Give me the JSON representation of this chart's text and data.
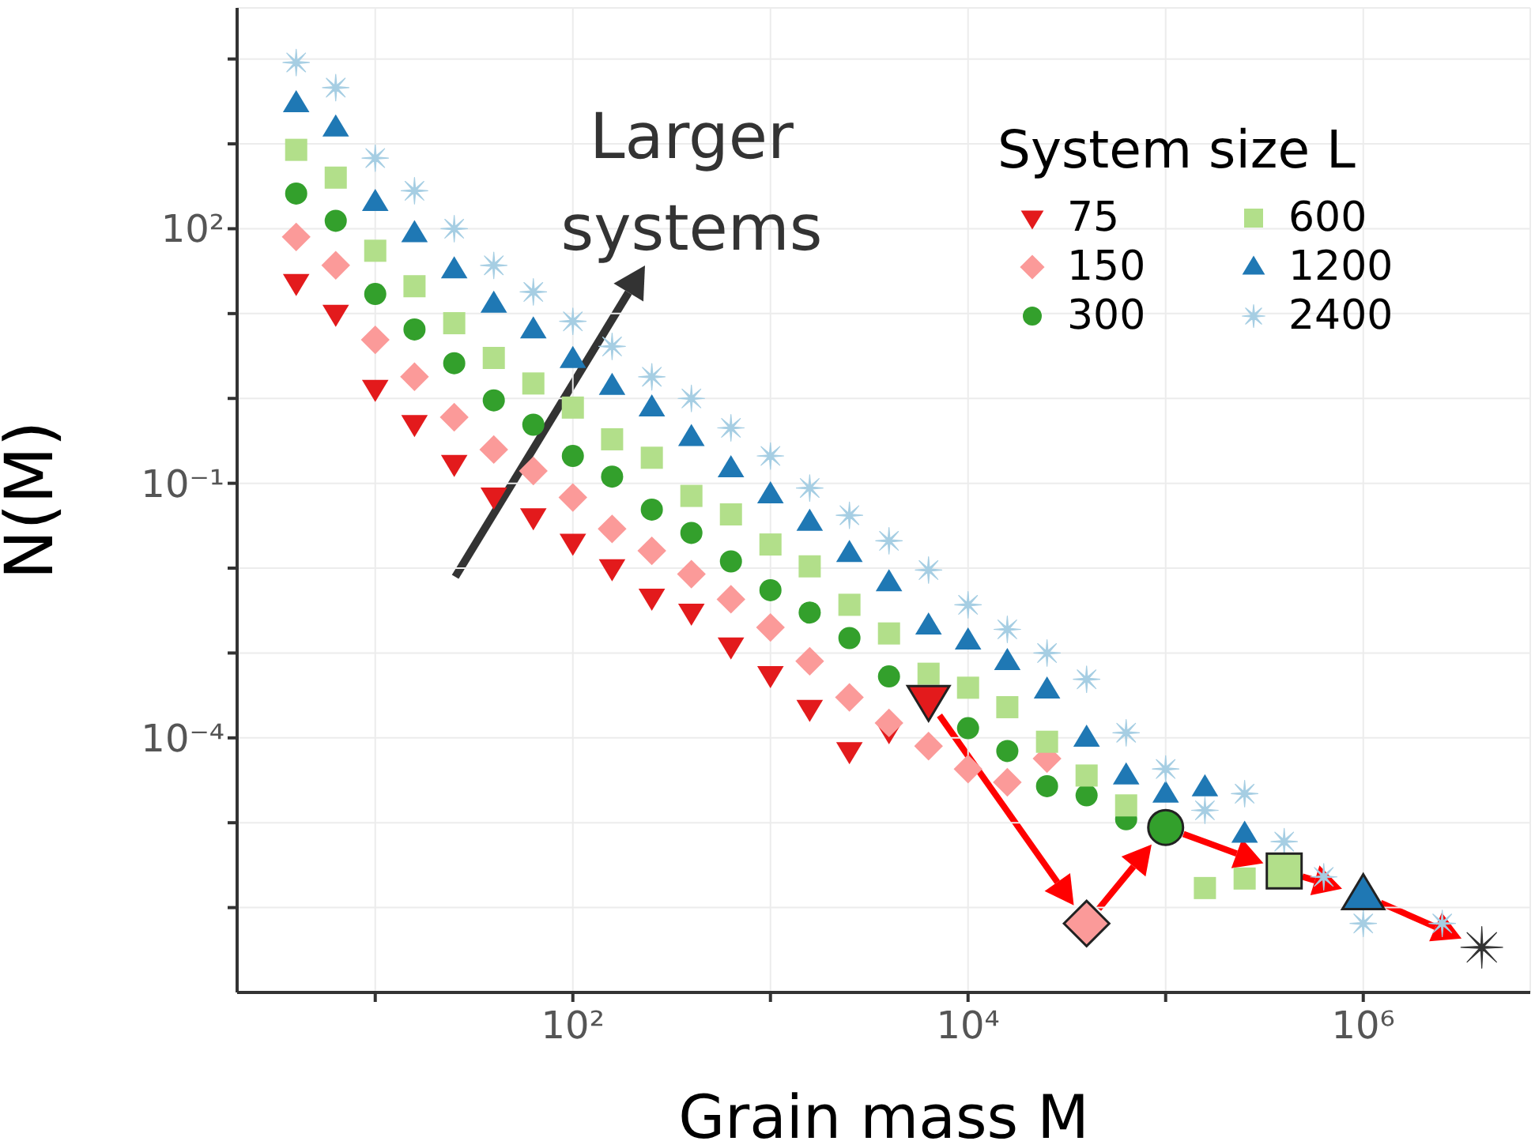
{
  "chart_data": {
    "type": "scatter",
    "xlabel": "Grain mass M",
    "ylabel": "N(M)",
    "legend_title": "System size L",
    "legend": "top right",
    "annotations": [
      "Larger systems"
    ],
    "log": "xy",
    "grid": true,
    "xlim": [
      2,
      7000000
    ],
    "ylim": [
      1e-07,
      40000
    ],
    "xticks": [
      {
        "value": 10,
        "label": null
      },
      {
        "value": 100,
        "label": "10²"
      },
      {
        "value": 1000,
        "label": null
      },
      {
        "value": 10000,
        "label": "10⁴"
      },
      {
        "value": 100000,
        "label": null
      },
      {
        "value": 1000000,
        "label": "10⁶"
      }
    ],
    "yticks": [
      {
        "value": 1e-06,
        "label": null
      },
      {
        "value": 1e-05,
        "label": null
      },
      {
        "value": 0.0001,
        "label": "10⁻⁴"
      },
      {
        "value": 0.001,
        "label": null
      },
      {
        "value": 0.01,
        "label": null
      },
      {
        "value": 0.1,
        "label": "10⁻¹"
      },
      {
        "value": 1,
        "label": null
      },
      {
        "value": 10,
        "label": null
      },
      {
        "value": 100,
        "label": "10²"
      },
      {
        "value": 1000,
        "label": null
      },
      {
        "value": 10000,
        "label": null
      }
    ],
    "series": [
      {
        "name": "75",
        "color": "#e31a1c",
        "marker": "triangle-down",
        "x": [
          3.98,
          6.31,
          10,
          15.8,
          25.1,
          39.8,
          63.1,
          100,
          158,
          251,
          398,
          631,
          1000,
          1580,
          2510,
          3980
        ],
        "values": [
          23,
          10,
          1.3,
          0.5,
          0.17,
          0.07,
          0.04,
          0.02,
          0.01,
          0.0045,
          0.003,
          0.0012,
          0.00055,
          0.00022,
          7e-05,
          0.00012
        ]
      },
      {
        "name": "150",
        "color": "#fb9a99",
        "marker": "diamond",
        "x": [
          3.98,
          6.31,
          10,
          15.8,
          25.1,
          39.8,
          63.1,
          100,
          158,
          251,
          398,
          631,
          1000,
          1580,
          2510,
          3980,
          6310,
          10000,
          15800,
          25100
        ],
        "values": [
          80,
          37,
          4.9,
          1.8,
          0.6,
          0.25,
          0.14,
          0.068,
          0.029,
          0.016,
          0.0085,
          0.0043,
          0.002,
          0.0008,
          0.0003,
          0.00015,
          8e-05,
          4.3e-05,
          3e-05,
          5.7e-05
        ]
      },
      {
        "name": "300",
        "color": "#33a02c",
        "marker": "circle",
        "x": [
          3.98,
          6.31,
          10,
          15.8,
          25.1,
          39.8,
          63.1,
          100,
          158,
          251,
          398,
          631,
          1000,
          1580,
          2510,
          3980,
          6310,
          10000,
          15800,
          25100,
          39800,
          63100
        ],
        "values": [
          260,
          124,
          17,
          6.5,
          2.6,
          0.95,
          0.49,
          0.21,
          0.12,
          0.049,
          0.026,
          0.012,
          0.0055,
          0.003,
          0.0015,
          0.00053,
          null,
          0.00013,
          7e-05,
          2.7e-05,
          2.1e-05,
          1.1e-05
        ]
      },
      {
        "name": "600",
        "color": "#b2df8a",
        "marker": "square",
        "x": [
          3.98,
          6.31,
          10,
          15.8,
          25.1,
          39.8,
          63.1,
          100,
          158,
          251,
          398,
          631,
          1000,
          1580,
          2510,
          3980,
          6310,
          10000,
          15800,
          25100,
          39800,
          63100,
          100000,
          158000,
          251000
        ],
        "values": [
          850,
          400,
          55,
          21,
          7.7,
          3,
          1.5,
          0.78,
          0.33,
          0.2,
          0.071,
          0.043,
          0.019,
          0.0105,
          0.0037,
          0.0017,
          0.00057,
          0.00039,
          0.00023,
          9e-05,
          3.6e-05,
          1.6e-05,
          null,
          1.7e-06,
          2.2e-06
        ]
      },
      {
        "name": "1200",
        "color": "#1f78b4",
        "marker": "triangle",
        "x": [
          3.98,
          6.31,
          10,
          15.8,
          25.1,
          39.8,
          63.1,
          100,
          158,
          251,
          398,
          631,
          1000,
          1580,
          2510,
          3980,
          6310,
          10000,
          15800,
          25100,
          39800,
          63100,
          100000,
          158000,
          251000
        ],
        "values": [
          3000,
          1550,
          206,
          88,
          33,
          13,
          6.5,
          2.9,
          1.4,
          0.78,
          0.35,
          0.15,
          0.074,
          0.035,
          0.015,
          0.0068,
          0.0021,
          0.0014,
          0.0008,
          0.00037,
          0.0001,
          3.6e-05,
          2.2e-05,
          2.6e-05,
          7.4e-06
        ]
      },
      {
        "name": "2400",
        "color": "#a6cee3",
        "marker": "star",
        "x": [
          3.98,
          6.31,
          10,
          15.8,
          25.1,
          39.8,
          63.1,
          100,
          158,
          251,
          398,
          631,
          1000,
          1580,
          2510,
          3980,
          6310,
          10000,
          15800,
          25100,
          39800,
          63100,
          100000,
          158000,
          251000,
          398000,
          631000,
          1000000,
          1580000,
          2510000
        ],
        "values": [
          9100,
          4600,
          680,
          280,
          100,
          37,
          18,
          8.1,
          4.1,
          1.8,
          1,
          0.45,
          0.21,
          0.088,
          0.042,
          0.021,
          0.0095,
          0.0037,
          0.0019,
          0.001,
          0.00049,
          0.000115,
          4.3e-05,
          1.4e-05,
          2.2e-05,
          6e-06,
          2.3e-06,
          6.5e-07,
          null,
          6.5e-07
        ]
      },
      {
        "color": "#e31a1c",
        "marker": "triangle-down",
        "x": [
          6310
        ],
        "values": [
          0.00028
        ]
      },
      {
        "color": "#fb9a99",
        "marker": "diamond",
        "x": [
          39800
        ],
        "values": [
          6.5e-07
        ]
      },
      {
        "color": "#33a02c",
        "marker": "circle",
        "x": [
          100000
        ],
        "values": [
          8.8e-06
        ]
      },
      {
        "color": "#b2df8a",
        "marker": "square",
        "x": [
          398000
        ],
        "values": [
          2.7e-06
        ]
      },
      {
        "color": "#1f78b4",
        "marker": "triangle",
        "x": [
          1000000
        ],
        "values": [
          1.4e-06
        ]
      },
      {
        "color": "#333333",
        "marker": "star",
        "x": [
          3980000
        ],
        "values": [
          3.4e-07
        ]
      }
    ]
  }
}
